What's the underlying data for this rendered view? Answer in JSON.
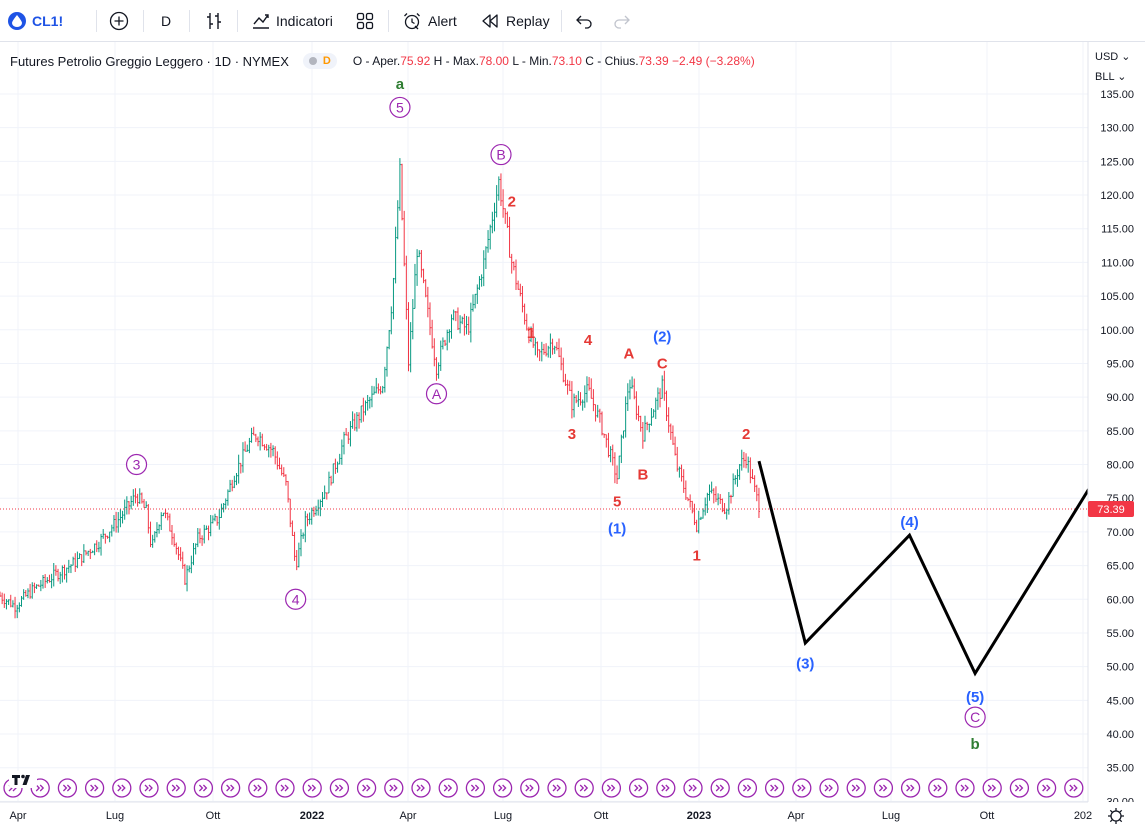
{
  "toolbar": {
    "symbol": "CL1!",
    "interval": "D",
    "indicators": "Indicatori",
    "alert": "Alert",
    "replay": "Replay"
  },
  "legend": {
    "title": "Futures Petrolio Greggio Leggero · 1D · NYMEX",
    "badge": "D",
    "open_label": "O - Aper.",
    "open": "75.92",
    "high_label": "H - Max.",
    "high": "78.00",
    "low_label": "L - Min.",
    "low": "73.10",
    "close_label": "C - Chius.",
    "close": "73.39",
    "change": "−2.49 (−3.28%)"
  },
  "price_scale": {
    "currency": "USD",
    "unit": "BLL",
    "ticks": [
      "135.00",
      "130.00",
      "125.00",
      "120.00",
      "115.00",
      "110.00",
      "105.00",
      "100.00",
      "95.00",
      "90.00",
      "85.00",
      "80.00",
      "75.00",
      "70.00",
      "65.00",
      "60.00",
      "55.00",
      "50.00",
      "45.00",
      "40.00",
      "35.00",
      "30.00"
    ],
    "last_price": "73.39"
  },
  "time_scale": {
    "ticks": [
      "Apr",
      "Lug",
      "Ott",
      "2022",
      "Apr",
      "Lug",
      "Ott",
      "2023",
      "Apr",
      "Lug",
      "Ott",
      "202"
    ]
  },
  "colors": {
    "up": "#089981",
    "down": "#f23645",
    "purple": "#9c27b0",
    "blue": "#2962ff",
    "red_label": "#e53935",
    "green_label": "#2e7d32"
  },
  "chart_data": {
    "type": "candlestick",
    "symbol": "Futures Petrolio Greggio Leggero",
    "timeframe": "1D",
    "exchange": "NYMEX",
    "ylim": [
      30,
      137
    ],
    "price_series": [
      {
        "x": "2021-03-01",
        "y": 60.5
      },
      {
        "x": "2021-03-15",
        "y": 59.0
      },
      {
        "x": "2021-04-01",
        "y": 61.5
      },
      {
        "x": "2021-04-20",
        "y": 63.5
      },
      {
        "x": "2021-05-10",
        "y": 65.5
      },
      {
        "x": "2021-06-01",
        "y": 68.5
      },
      {
        "x": "2021-06-20",
        "y": 72.0
      },
      {
        "x": "2021-07-06",
        "y": 75.5
      },
      {
        "x": "2021-07-15",
        "y": 73.0
      },
      {
        "x": "2021-07-20",
        "y": 67.5
      },
      {
        "x": "2021-07-30",
        "y": 73.5
      },
      {
        "x": "2021-08-10",
        "y": 69.0
      },
      {
        "x": "2021-08-20",
        "y": 63.0
      },
      {
        "x": "2021-09-01",
        "y": 69.0
      },
      {
        "x": "2021-09-20",
        "y": 72.0
      },
      {
        "x": "2021-10-05",
        "y": 78.5
      },
      {
        "x": "2021-10-20",
        "y": 83.5
      },
      {
        "x": "2021-10-26",
        "y": 84.5
      },
      {
        "x": "2021-11-10",
        "y": 82.0
      },
      {
        "x": "2021-11-22",
        "y": 77.0
      },
      {
        "x": "2021-12-01",
        "y": 65.0
      },
      {
        "x": "2021-12-10",
        "y": 71.5
      },
      {
        "x": "2021-12-30",
        "y": 76.5
      },
      {
        "x": "2022-01-15",
        "y": 83.5
      },
      {
        "x": "2022-02-01",
        "y": 88.0
      },
      {
        "x": "2022-02-20",
        "y": 92.0
      },
      {
        "x": "2022-03-01",
        "y": 105.0
      },
      {
        "x": "2022-03-08",
        "y": 123.5
      },
      {
        "x": "2022-03-16",
        "y": 95.0
      },
      {
        "x": "2022-03-24",
        "y": 112.0
      },
      {
        "x": "2022-04-11",
        "y": 94.5
      },
      {
        "x": "2022-04-25",
        "y": 102.0
      },
      {
        "x": "2022-05-10",
        "y": 100.0
      },
      {
        "x": "2022-05-25",
        "y": 110.0
      },
      {
        "x": "2022-06-08",
        "y": 122.0
      },
      {
        "x": "2022-06-20",
        "y": 110.0
      },
      {
        "x": "2022-07-05",
        "y": 100.0
      },
      {
        "x": "2022-07-14",
        "y": 96.0
      },
      {
        "x": "2022-07-29",
        "y": 98.5
      },
      {
        "x": "2022-08-15",
        "y": 89.0
      },
      {
        "x": "2022-08-30",
        "y": 91.0
      },
      {
        "x": "2022-09-10",
        "y": 86.5
      },
      {
        "x": "2022-09-26",
        "y": 78.0
      },
      {
        "x": "2022-10-07",
        "y": 92.5
      },
      {
        "x": "2022-10-20",
        "y": 84.5
      },
      {
        "x": "2022-11-07",
        "y": 91.5
      },
      {
        "x": "2022-11-20",
        "y": 80.0
      },
      {
        "x": "2022-12-09",
        "y": 71.0
      },
      {
        "x": "2022-12-20",
        "y": 76.0
      },
      {
        "x": "2023-01-05",
        "y": 73.5
      },
      {
        "x": "2023-01-18",
        "y": 80.0
      },
      {
        "x": "2023-01-24",
        "y": 81.0
      },
      {
        "x": "2023-02-02",
        "y": 75.5
      },
      {
        "x": "2023-02-06",
        "y": 73.4
      }
    ],
    "projection": [
      {
        "x": "2023-02-05",
        "y": 80.5
      },
      {
        "x": "2023-03-20",
        "y": 53.5
      },
      {
        "x": "2023-06-25",
        "y": 69.5
      },
      {
        "x": "2023-08-25",
        "y": 49.0
      },
      {
        "x": "2024-01-15",
        "y": 86.0
      }
    ],
    "wave_labels": [
      {
        "text": "5",
        "style": "circle",
        "color": "purple",
        "x": "2022-03-08",
        "y": 133.0
      },
      {
        "text": "a",
        "style": "plain",
        "color": "green",
        "x": "2022-03-08",
        "y": 136.5
      },
      {
        "text": "3",
        "style": "circle",
        "color": "purple",
        "x": "2021-07-06",
        "y": 80.0
      },
      {
        "text": "4",
        "style": "circle",
        "color": "purple",
        "x": "2021-12-01",
        "y": 60.0
      },
      {
        "text": "A",
        "style": "circle",
        "color": "purple",
        "x": "2022-04-11",
        "y": 90.5
      },
      {
        "text": "B",
        "style": "circle",
        "color": "purple",
        "x": "2022-06-10",
        "y": 126.0
      },
      {
        "text": "2",
        "style": "plain",
        "color": "red",
        "x": "2022-06-20",
        "y": 119.0
      },
      {
        "text": "1",
        "style": "plain",
        "color": "red",
        "x": "2022-07-08",
        "y": 99.5
      },
      {
        "text": "4",
        "style": "plain",
        "color": "red",
        "x": "2022-08-30",
        "y": 98.5
      },
      {
        "text": "3",
        "style": "plain",
        "color": "red",
        "x": "2022-08-15",
        "y": 84.5
      },
      {
        "text": "5",
        "style": "plain",
        "color": "red",
        "x": "2022-09-26",
        "y": 74.5
      },
      {
        "text": "(1)",
        "style": "plain",
        "color": "blue",
        "x": "2022-09-26",
        "y": 70.5
      },
      {
        "text": "A",
        "style": "plain",
        "color": "red",
        "x": "2022-10-07",
        "y": 96.5
      },
      {
        "text": "B",
        "style": "plain",
        "color": "red",
        "x": "2022-10-20",
        "y": 78.5
      },
      {
        "text": "C",
        "style": "plain",
        "color": "red",
        "x": "2022-11-07",
        "y": 95.0
      },
      {
        "text": "(2)",
        "style": "plain",
        "color": "blue",
        "x": "2022-11-07",
        "y": 99.0
      },
      {
        "text": "1",
        "style": "plain",
        "color": "red",
        "x": "2022-12-09",
        "y": 66.5
      },
      {
        "text": "2",
        "style": "plain",
        "color": "red",
        "x": "2023-01-24",
        "y": 84.5
      },
      {
        "text": "(3)",
        "style": "plain",
        "color": "blue",
        "x": "2023-03-20",
        "y": 50.5
      },
      {
        "text": "(4)",
        "style": "plain",
        "color": "blue",
        "x": "2023-06-25",
        "y": 71.5
      },
      {
        "text": "(5)",
        "style": "plain",
        "color": "blue",
        "x": "2023-08-25",
        "y": 45.5
      },
      {
        "text": "C",
        "style": "circle",
        "color": "purple",
        "x": "2023-08-25",
        "y": 42.5
      },
      {
        "text": "b",
        "style": "plain",
        "color": "green",
        "x": "2023-08-25",
        "y": 38.5
      }
    ]
  }
}
